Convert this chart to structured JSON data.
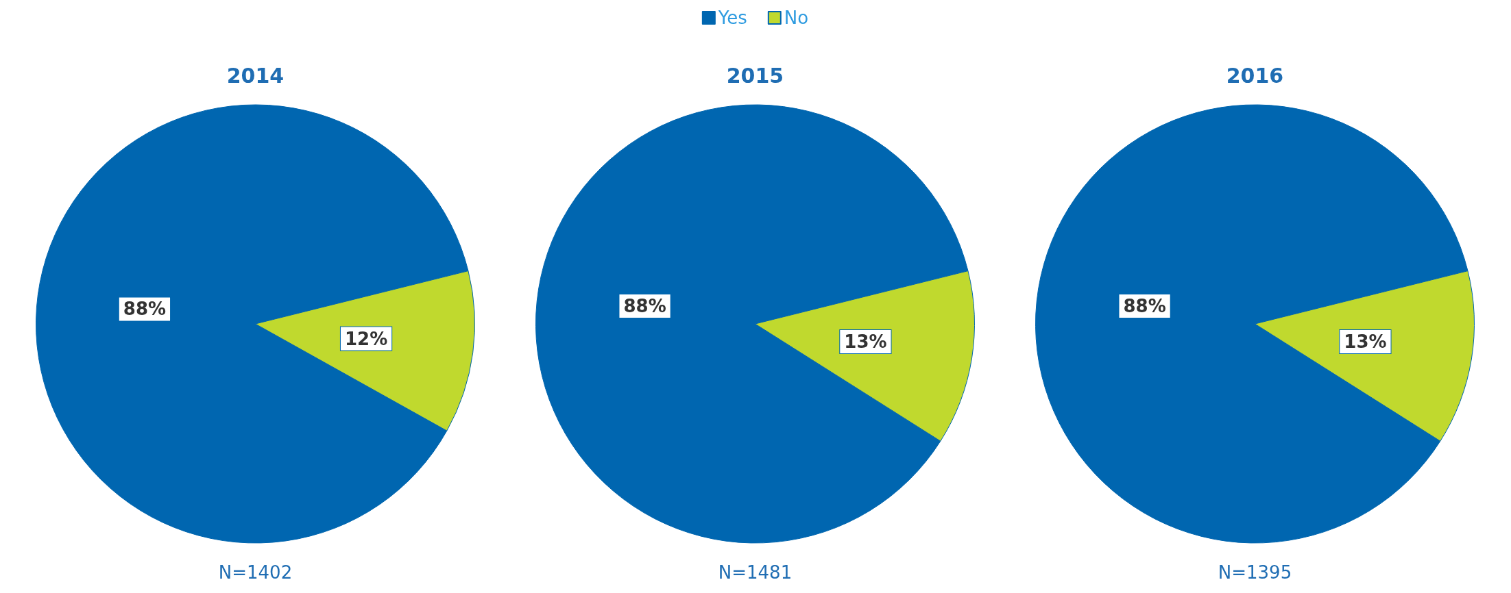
{
  "chart_data": [
    {
      "type": "pie",
      "title": "2014",
      "categories": [
        null,
        null
      ],
      "values": [
        88,
        12
      ],
      "value_labels": [
        "88%",
        "12%"
      ],
      "colors": [
        "#0066b0",
        "#c0d92e"
      ],
      "legend": false,
      "annotations": [
        "N=1402"
      ]
    },
    {
      "type": "pie",
      "title": "2015",
      "categories": [
        "Yes",
        "No"
      ],
      "values": [
        88,
        13
      ],
      "value_labels": [
        "88%",
        "13%"
      ],
      "colors": [
        "#0066b0",
        "#c0d92e"
      ],
      "legend": "top",
      "annotations": [
        "N=1481"
      ]
    },
    {
      "type": "pie",
      "title": "2016",
      "categories": [
        null,
        null
      ],
      "values": [
        88,
        13
      ],
      "value_labels": [
        "88%",
        "13%"
      ],
      "colors": [
        "#0066b0",
        "#c0d92e"
      ],
      "legend": false,
      "annotations": [
        "N=1395"
      ]
    }
  ]
}
